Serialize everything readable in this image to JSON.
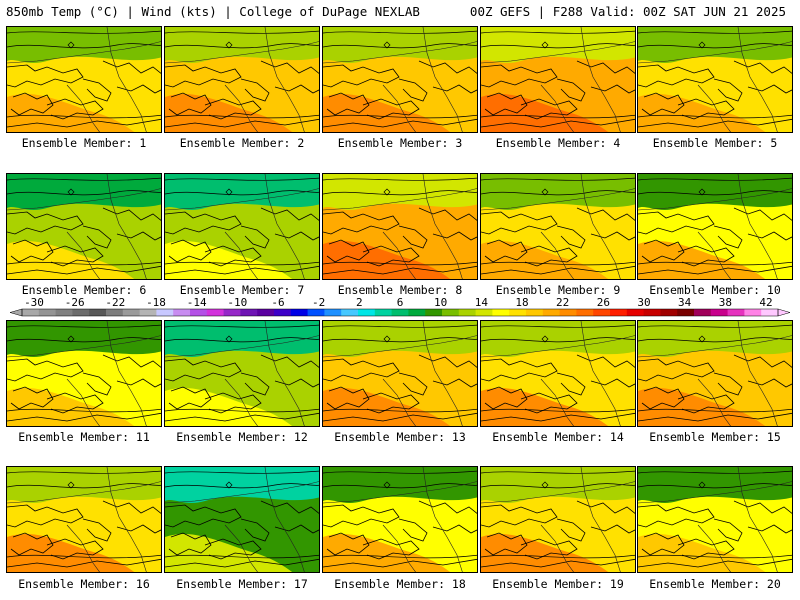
{
  "header": {
    "left": "850mb Temp (°C) | Wind (kts) | College of DuPage NEXLAB",
    "right": "00Z GEFS | F288 Valid: 00Z SAT JUN 21 2025"
  },
  "members": [
    {
      "label": "Ensemble Member: 1",
      "temp": 17
    },
    {
      "label": "Ensemble Member: 2",
      "temp": 19
    },
    {
      "label": "Ensemble Member: 3",
      "temp": 19
    },
    {
      "label": "Ensemble Member: 4",
      "temp": 20
    },
    {
      "label": "Ensemble Member: 5",
      "temp": 17
    },
    {
      "label": "Ensemble Member: 6",
      "temp": 13
    },
    {
      "label": "Ensemble Member: 7",
      "temp": 12
    },
    {
      "label": "Ensemble Member: 8",
      "temp": 20
    },
    {
      "label": "Ensemble Member: 9",
      "temp": 17
    },
    {
      "label": "Ensemble Member: 10",
      "temp": 16
    },
    {
      "label": "Ensemble Member: 11",
      "temp": 15
    },
    {
      "label": "Ensemble Member: 12",
      "temp": 12
    },
    {
      "label": "Ensemble Member: 13",
      "temp": 19
    },
    {
      "label": "Ensemble Member: 14",
      "temp": 18
    },
    {
      "label": "Ensemble Member: 15",
      "temp": 19
    },
    {
      "label": "Ensemble Member: 16",
      "temp": 18
    },
    {
      "label": "Ensemble Member: 17",
      "temp": 10
    },
    {
      "label": "Ensemble Member: 18",
      "temp": 16
    },
    {
      "label": "Ensemble Member: 19",
      "temp": 18
    },
    {
      "label": "Ensemble Member: 20",
      "temp": 15
    }
  ],
  "colorbar": {
    "labels": [
      "-30",
      "-26",
      "-22",
      "-18",
      "-14",
      "-10",
      "-6",
      "-2",
      "2",
      "6",
      "10",
      "14",
      "18",
      "22",
      "26",
      "30",
      "34",
      "38",
      "42"
    ],
    "colors": [
      "#a8a8a8",
      "#949494",
      "#808080",
      "#6c6c6c",
      "#585858",
      "#7d7d7d",
      "#9b9b9b",
      "#b4b4b4",
      "#c8c8ff",
      "#c88cf0",
      "#b450e6",
      "#d232dc",
      "#9628c8",
      "#6e14b4",
      "#5a00a0",
      "#3c00c8",
      "#0000e6",
      "#0050ff",
      "#1e90ff",
      "#46c8ff",
      "#00e6e6",
      "#00d2a0",
      "#00be6e",
      "#00aa3c",
      "#329600",
      "#78be00",
      "#aad200",
      "#d2e600",
      "#ffff00",
      "#ffe100",
      "#ffc800",
      "#ffaa00",
      "#ff8c00",
      "#ff6e00",
      "#ff4600",
      "#ff1e00",
      "#e60000",
      "#c80000",
      "#a00000",
      "#780000",
      "#a0005a",
      "#c8008c",
      "#e632be",
      "#ff82e6",
      "#ffc8ff"
    ]
  }
}
